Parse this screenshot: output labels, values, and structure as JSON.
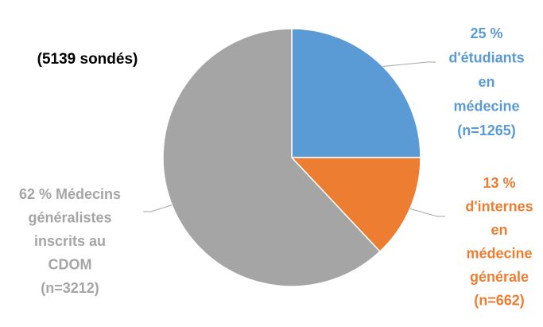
{
  "chart_data": {
    "type": "pie",
    "title": "(5139 sondés)",
    "start_angle_deg": 0,
    "direction": "clockwise",
    "slices": [
      {
        "label_lines": [
          "25 %",
          "d'étudiants",
          "en",
          "médecine",
          "(n=1265)"
        ],
        "value": 25,
        "count": 1265,
        "color": "#5B9BD5"
      },
      {
        "label_lines": [
          "13 %",
          "d'internes",
          "en",
          "médecine",
          "générale",
          "(n=662)"
        ],
        "value": 13,
        "count": 662,
        "color": "#ED7D31"
      },
      {
        "label_lines": [
          "62 % Médecins",
          "généralistes",
          "inscrits au",
          "CDOM",
          "(n=3212)"
        ],
        "value": 62,
        "count": 3212,
        "color": "#A5A5A5"
      }
    ],
    "leader_line_color": "#A6A6A6"
  }
}
